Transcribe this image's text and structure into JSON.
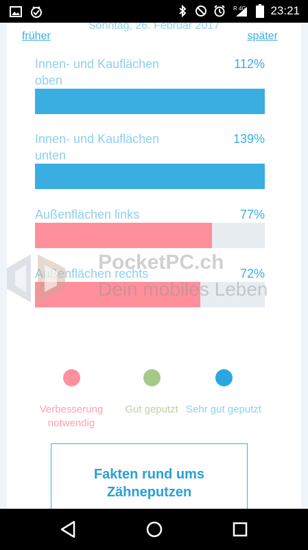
{
  "status_bar": {
    "time": "23:21",
    "network_label": "4G",
    "roaming_label": "R",
    "icons": [
      "image-icon",
      "check-badge-icon",
      "bluetooth-icon",
      "do-not-disturb-icon",
      "alarm-icon",
      "signal-icon",
      "battery-icon"
    ]
  },
  "header": {
    "date": "Sonntag, 26. Februar 2017",
    "prev_label": "früher",
    "next_label": "später"
  },
  "metrics": [
    {
      "label": "Innen- und Kauflächen oben",
      "value": "112%",
      "fill": 1.0,
      "color": "#3aaee0",
      "label_color": "#8fd0ee",
      "value_color": "#3aaee0"
    },
    {
      "label": "Innen- und Kauflächen unten",
      "value": "139%",
      "fill": 1.0,
      "color": "#3aaee0",
      "label_color": "#8fd0ee",
      "value_color": "#3aaee0"
    },
    {
      "label": "Außenflächen links",
      "value": "77%",
      "fill": 0.77,
      "color": "#ff8f9b",
      "label_color": "#8fd0ee",
      "value_color": "#3aaee0"
    },
    {
      "label": "Außenflächen rechts",
      "value": "72%",
      "fill": 0.72,
      "color": "#ff8f9b",
      "label_color": "#8fd0ee",
      "value_color": "#3aaee0"
    }
  ],
  "legend": [
    {
      "label": "Verbesserung notwendig",
      "color": "#ff8f9b",
      "text_color": "#ffa0aa"
    },
    {
      "label": "Gut geputzt",
      "color": "#a6c98a",
      "text_color": "#b9d3a1"
    },
    {
      "label": "Sehr gut geputzt",
      "color": "#2aa7e3",
      "text_color": "#8fd0ee"
    }
  ],
  "facts_button": {
    "label": "Fakten rund ums Zähneputzen"
  },
  "watermark": {
    "line1": "PocketPC.ch",
    "line2": "Dein mobiles Leben"
  }
}
